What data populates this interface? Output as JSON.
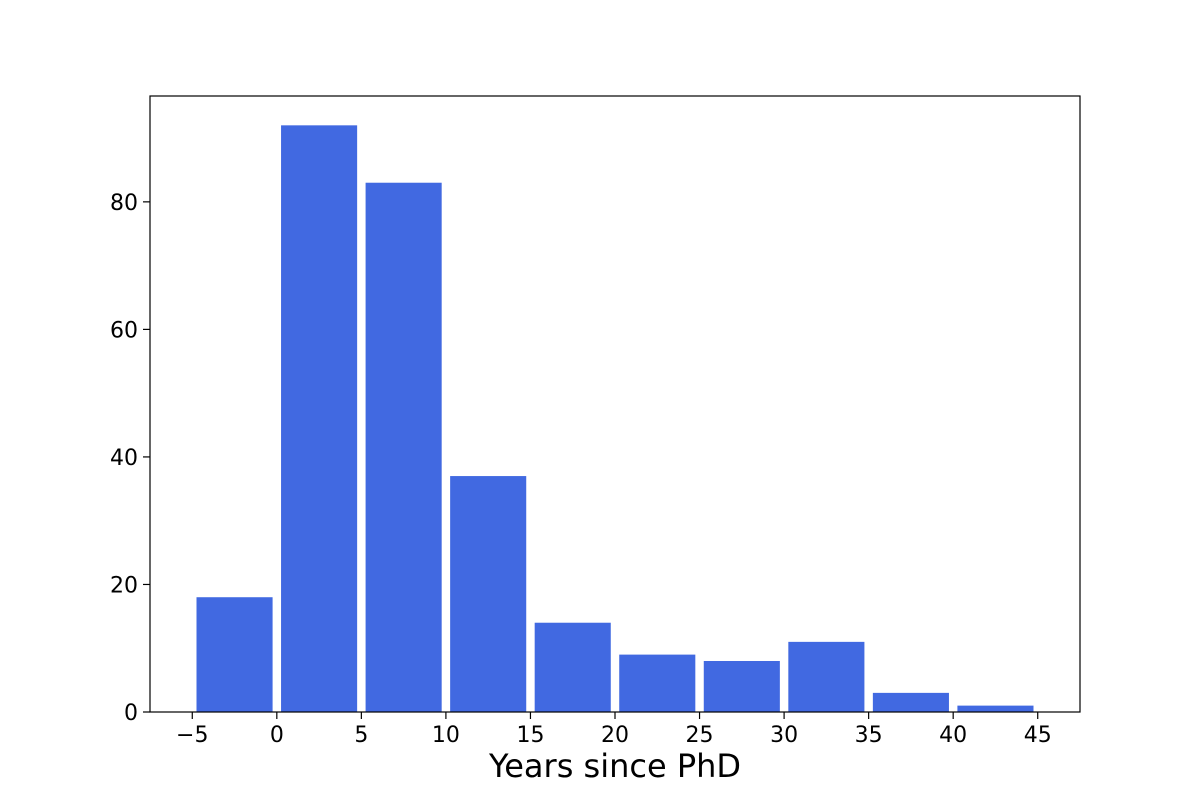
{
  "chart_data": {
    "type": "bar",
    "title": "",
    "xlabel": "Years since PhD",
    "ylabel": "",
    "bins": [
      {
        "start": -5,
        "end": 0,
        "value": 18
      },
      {
        "start": 0,
        "end": 5,
        "value": 92
      },
      {
        "start": 5,
        "end": 10,
        "value": 83
      },
      {
        "start": 10,
        "end": 15,
        "value": 37
      },
      {
        "start": 15,
        "end": 20,
        "value": 14
      },
      {
        "start": 20,
        "end": 25,
        "value": 9
      },
      {
        "start": 25,
        "end": 30,
        "value": 8
      },
      {
        "start": 30,
        "end": 35,
        "value": 11
      },
      {
        "start": 35,
        "end": 40,
        "value": 3
      },
      {
        "start": 40,
        "end": 45,
        "value": 1
      }
    ],
    "bar_fill_fraction": 0.9,
    "xlim": [
      -7.5,
      47.5
    ],
    "ylim": [
      0,
      96.6
    ],
    "xticks": [
      -5,
      0,
      5,
      10,
      15,
      20,
      25,
      30,
      35,
      40,
      45
    ],
    "xtick_labels": [
      "−5",
      "0",
      "5",
      "10",
      "15",
      "20",
      "25",
      "30",
      "35",
      "40",
      "45"
    ],
    "yticks": [
      0,
      20,
      40,
      60,
      80
    ],
    "ytick_labels": [
      "0",
      "20",
      "40",
      "60",
      "80"
    ],
    "bar_color": "#4169e1",
    "grid": false
  }
}
